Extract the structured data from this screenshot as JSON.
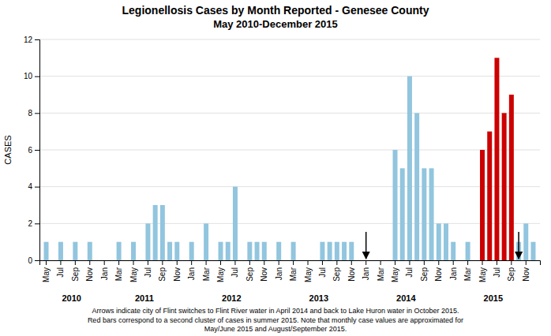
{
  "chart_data": {
    "type": "bar",
    "title": "Legionellosis Cases by Month Reported - Genesee County",
    "subtitle": "May 2010-December 2015",
    "y_label": "CASES",
    "categories": [
      "May",
      null,
      "Jul",
      null,
      "Sep",
      null,
      "Nov",
      null,
      "Jan",
      null,
      "Mar",
      null,
      "May",
      null,
      "Jul",
      null,
      "Sep",
      null,
      "Nov",
      null,
      "Jan",
      null,
      "Mar",
      null,
      "May",
      null,
      "Jul",
      null,
      "Sep",
      null,
      "Nov",
      null,
      "Jan",
      null,
      "Mar",
      null,
      "May",
      null,
      "Jul",
      null,
      "Sep",
      null,
      "Nov",
      null,
      "Jan",
      null,
      "Mar",
      null,
      "May",
      null,
      "Jul",
      null,
      "Sep",
      null,
      "Nov",
      null,
      "Jan",
      null,
      "Mar",
      null,
      "May",
      null,
      "Jul",
      null,
      "Sep",
      null,
      "Nov",
      null
    ],
    "groups": [
      2010,
      2010,
      2010,
      2010,
      2010,
      2010,
      2010,
      2010,
      2011,
      2011,
      2011,
      2011,
      2011,
      2011,
      2011,
      2011,
      2011,
      2011,
      2011,
      2011,
      2012,
      2012,
      2012,
      2012,
      2012,
      2012,
      2012,
      2012,
      2012,
      2012,
      2012,
      2012,
      2013,
      2013,
      2013,
      2013,
      2013,
      2013,
      2013,
      2013,
      2013,
      2013,
      2013,
      2013,
      2014,
      2014,
      2014,
      2014,
      2014,
      2014,
      2014,
      2014,
      2014,
      2014,
      2014,
      2014,
      2015,
      2015,
      2015,
      2015,
      2015,
      2015,
      2015,
      2015,
      2015,
      2015,
      2015,
      2015
    ],
    "values": [
      1,
      null,
      1,
      null,
      1,
      null,
      1,
      null,
      null,
      null,
      1,
      null,
      1,
      null,
      2,
      3,
      3,
      1,
      1,
      null,
      1,
      null,
      2,
      null,
      1,
      1,
      4,
      null,
      1,
      1,
      1,
      null,
      1,
      null,
      1,
      null,
      null,
      null,
      1,
      1,
      1,
      1,
      1,
      null,
      0,
      null,
      null,
      null,
      6,
      5,
      10,
      8,
      5,
      5,
      2,
      2,
      1,
      null,
      1,
      null,
      6,
      7,
      11,
      8,
      9,
      1,
      2,
      1
    ],
    "colors": [
      "#92C5DE",
      null,
      "#92C5DE",
      null,
      "#92C5DE",
      null,
      "#92C5DE",
      null,
      null,
      null,
      "#92C5DE",
      null,
      "#92C5DE",
      null,
      "#92C5DE",
      "#92C5DE",
      "#92C5DE",
      "#92C5DE",
      "#92C5DE",
      null,
      "#92C5DE",
      null,
      "#92C5DE",
      null,
      "#92C5DE",
      "#92C5DE",
      "#92C5DE",
      null,
      "#92C5DE",
      "#92C5DE",
      "#92C5DE",
      null,
      "#92C5DE",
      null,
      "#92C5DE",
      null,
      null,
      null,
      "#92C5DE",
      "#92C5DE",
      "#92C5DE",
      "#92C5DE",
      "#92C5DE",
      null,
      "#92C5DE",
      null,
      null,
      null,
      "#92C5DE",
      "#92C5DE",
      "#92C5DE",
      "#92C5DE",
      "#92C5DE",
      "#92C5DE",
      "#92C5DE",
      "#92C5DE",
      "#92C5DE",
      null,
      "#92C5DE",
      null,
      "#CC0000",
      "#CC0000",
      "#CC0000",
      "#CC0000",
      "#CC0000",
      "#92C5DE",
      "#92C5DE",
      "#92C5DE"
    ],
    "arrows": [
      false,
      false,
      false,
      false,
      false,
      false,
      false,
      false,
      false,
      false,
      false,
      false,
      false,
      false,
      false,
      false,
      false,
      false,
      false,
      false,
      false,
      false,
      false,
      false,
      false,
      false,
      false,
      false,
      false,
      false,
      false,
      false,
      false,
      false,
      false,
      false,
      false,
      false,
      false,
      false,
      false,
      false,
      false,
      false,
      true,
      false,
      false,
      false,
      false,
      false,
      false,
      false,
      false,
      false,
      false,
      false,
      false,
      false,
      false,
      false,
      false,
      false,
      false,
      false,
      false,
      true,
      false,
      false
    ],
    "ylim": [
      0,
      12
    ],
    "yticks": [
      0,
      2,
      4,
      6,
      8,
      10,
      12
    ],
    "grid": true,
    "caption": [
      "Arrows indicate city of Flint switches to Flint River water in April 2014 and back to Lake Huron water in October 2015.",
      "Red bars correspond to a second cluster of cases in summer 2015. Note that monthly case values are approximated for",
      "May/June 2015 and August/September 2015."
    ]
  }
}
